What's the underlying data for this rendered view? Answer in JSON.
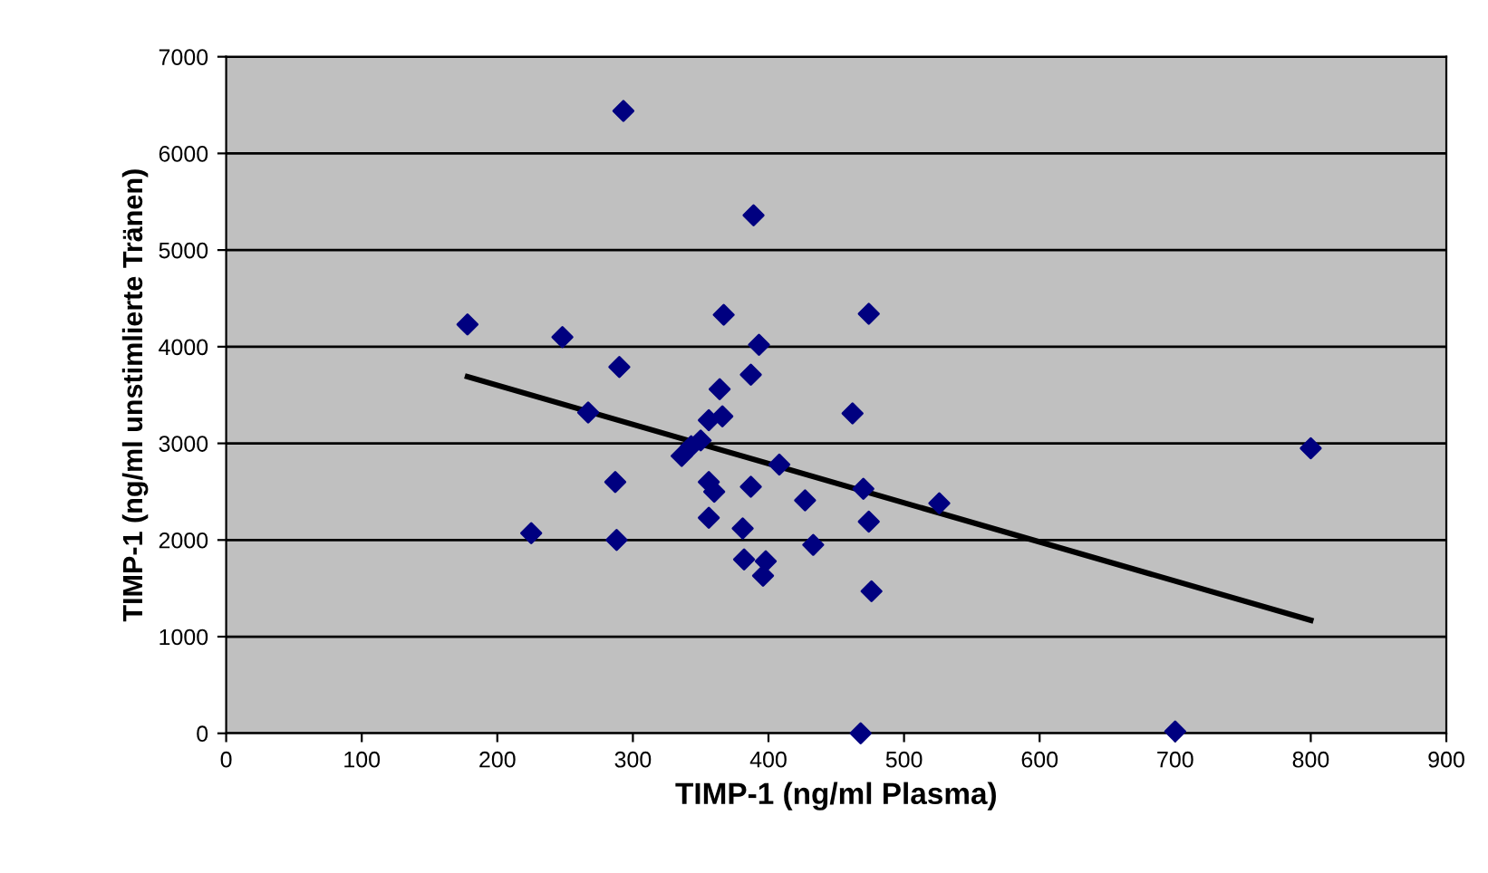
{
  "chart_data": {
    "type": "scatter",
    "xlabel": "TIMP-1 (ng/ml Plasma)",
    "ylabel": "TIMP-1 (ng/ml unstimlierte Tränen)",
    "series": [
      {
        "color": "#000080",
        "marker": "diamond",
        "x": [
          178,
          248,
          293,
          389,
          290,
          267,
          287,
          225,
          288,
          367,
          474,
          393,
          387,
          364,
          356,
          366,
          462,
          350,
          343,
          336,
          408,
          356,
          360,
          387,
          427,
          470,
          526,
          356,
          474,
          381,
          433,
          382,
          398,
          396,
          476,
          468,
          700,
          800
        ],
        "values": [
          4230,
          4100,
          6440,
          5360,
          3790,
          3320,
          2600,
          2070,
          2000,
          4330,
          4340,
          4020,
          3710,
          3560,
          3240,
          3280,
          3310,
          3030,
          2970,
          2870,
          2780,
          2600,
          2500,
          2550,
          2410,
          2530,
          2380,
          2230,
          2190,
          2120,
          1950,
          1800,
          1780,
          1630,
          1470,
          0,
          20,
          2950
        ]
      },
      {
        "type": "line",
        "color": "#000000",
        "marker": "none",
        "x": [
          178,
          800
        ],
        "values": [
          3690,
          1170
        ]
      }
    ],
    "xlim": [
      0,
      900
    ],
    "xticks": [
      0,
      100,
      200,
      300,
      400,
      500,
      600,
      700,
      800,
      900
    ],
    "ylim": [
      0,
      7000
    ],
    "yticks": [
      0,
      1000,
      2000,
      3000,
      4000,
      5000,
      6000,
      7000
    ],
    "grid": "y",
    "legend": false
  }
}
